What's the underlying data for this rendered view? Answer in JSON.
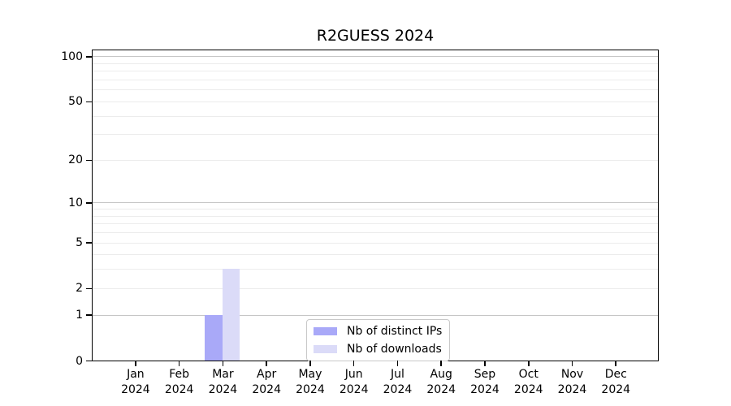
{
  "chart_data": {
    "type": "bar",
    "title": "R2GUESS 2024",
    "categories": [
      "Jan",
      "Feb",
      "Mar",
      "Apr",
      "May",
      "Jun",
      "Jul",
      "Aug",
      "Sep",
      "Oct",
      "Nov",
      "Dec"
    ],
    "category_year": "2024",
    "series": [
      {
        "name": "Nb of distinct IPs",
        "color": "#a9a9f8",
        "values": [
          0,
          0,
          1,
          0,
          0,
          0,
          0,
          0,
          0,
          0,
          0,
          0
        ]
      },
      {
        "name": "Nb of downloads",
        "color": "#dbdbf8",
        "values": [
          0,
          0,
          3,
          0,
          0,
          0,
          0,
          0,
          0,
          0,
          0,
          0
        ]
      }
    ],
    "y_scale": "log1p",
    "ylim": [
      0,
      113
    ],
    "y_ticks": [
      0,
      1,
      2,
      5,
      10,
      20,
      50,
      100
    ],
    "grid": {
      "major": [
        1,
        10,
        100
      ],
      "minor": [
        2,
        3,
        4,
        5,
        6,
        7,
        8,
        9,
        20,
        30,
        40,
        50,
        60,
        70,
        80,
        90
      ],
      "major_color": "#c6c6c6",
      "minor_color": "#ececec"
    },
    "legend": {
      "position": "lower center"
    },
    "axis_color": "#000000",
    "background_color": "#ffffff"
  }
}
